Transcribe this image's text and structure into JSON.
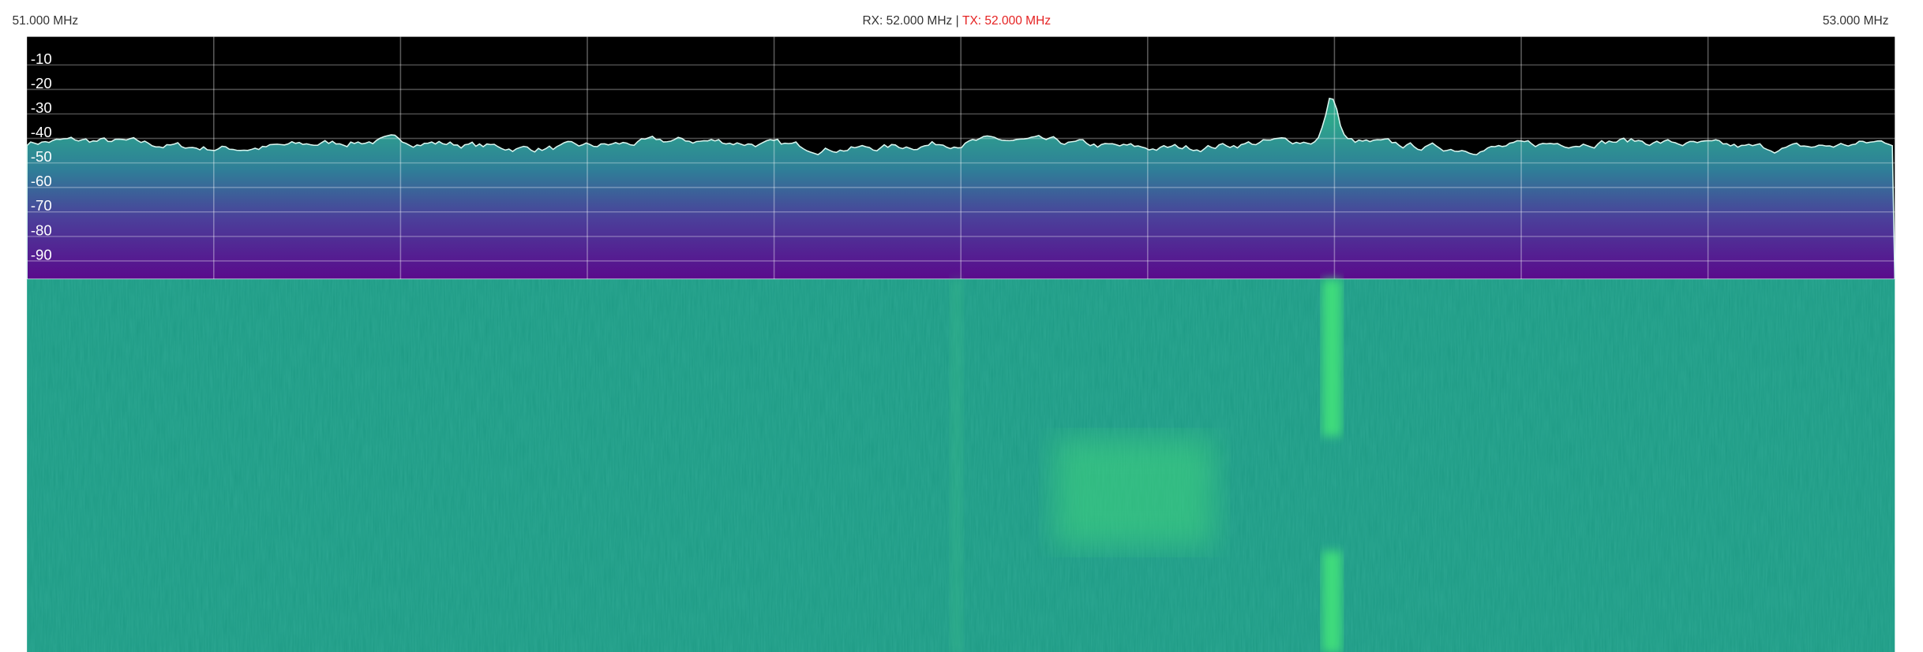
{
  "header": {
    "left_frequency": "51.000 MHz",
    "rx": "RX: 52.000 MHz",
    "separator": " | ",
    "tx": "TX: 52.000 MHz",
    "right_frequency": "53.000 MHz"
  },
  "spectrum": {
    "db_labels": [
      "-10",
      "-20",
      "-30",
      "-40",
      "-50",
      "-60",
      "-70",
      "-80",
      "-90"
    ]
  }
}
